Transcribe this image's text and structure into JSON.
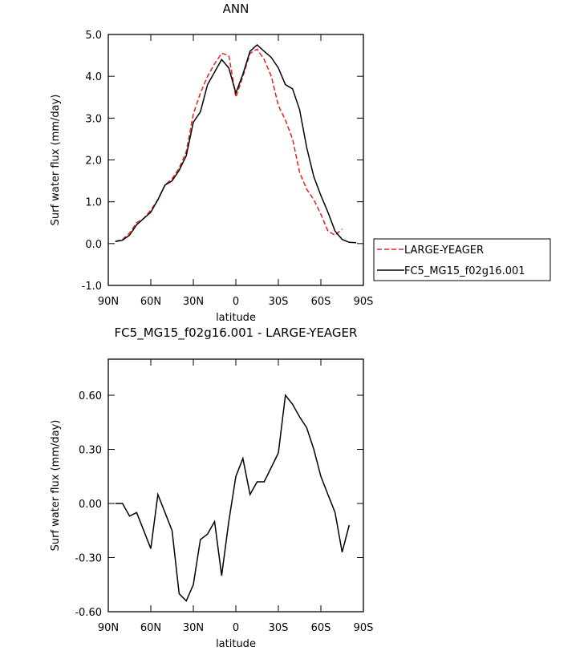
{
  "chart_data": [
    {
      "type": "line",
      "title": "ANN",
      "xlabel": "latitude",
      "ylabel": "Surf water flux (mm/day)",
      "x": [
        85,
        80,
        75,
        70,
        65,
        60,
        55,
        50,
        45,
        40,
        35,
        30,
        25,
        20,
        15,
        10,
        5,
        0,
        -5,
        -10,
        -15,
        -20,
        -25,
        -30,
        -35,
        -40,
        -45,
        -50,
        -55,
        -60,
        -65,
        -70,
        -75,
        -80,
        -85
      ],
      "xlim": [
        90,
        -90
      ],
      "xticks": [
        {
          "value": 90,
          "label": "90N"
        },
        {
          "value": 60,
          "label": "60N"
        },
        {
          "value": 30,
          "label": "30N"
        },
        0,
        {
          "value": -30,
          "label": "30S"
        },
        {
          "value": -60,
          "label": "60S"
        },
        {
          "value": -90,
          "label": "90S"
        }
      ],
      "ylim": [
        -1.0,
        5.0
      ],
      "yticks": [
        {
          "value": -1.0,
          "label": "-1.0"
        },
        {
          "value": 0.0,
          "label": "0.0"
        },
        {
          "value": 1.0,
          "label": "1.0"
        },
        {
          "value": 2.0,
          "label": "2.0"
        },
        {
          "value": 3.0,
          "label": "3.0"
        },
        {
          "value": 4.0,
          "label": "4.0"
        },
        {
          "value": 5.0,
          "label": "5.0"
        }
      ],
      "legend": "outside-right",
      "series": [
        {
          "name": "LARGE-YEAGER",
          "color": "#e8201a",
          "line_style": "dashed",
          "values": [
            0.05,
            0.1,
            0.25,
            0.5,
            0.6,
            0.8,
            1.05,
            1.4,
            1.55,
            1.8,
            2.2,
            3.1,
            3.6,
            4.0,
            4.3,
            4.55,
            4.5,
            3.5,
            4.0,
            4.55,
            4.65,
            4.4,
            4.0,
            3.3,
            2.95,
            2.5,
            1.7,
            1.3,
            1.05,
            0.7,
            0.3,
            0.2,
            0.35,
            null,
            null
          ]
        },
        {
          "name": "FC5_MG15_f02g16.001",
          "color": "#000000",
          "line_style": "solid",
          "values": [
            0.05,
            0.08,
            0.2,
            0.45,
            0.6,
            0.75,
            1.05,
            1.4,
            1.5,
            1.75,
            2.1,
            2.9,
            3.15,
            3.8,
            4.1,
            4.4,
            4.2,
            3.6,
            4.05,
            4.6,
            4.75,
            4.6,
            4.45,
            4.2,
            3.8,
            3.7,
            3.2,
            2.3,
            1.6,
            1.15,
            0.75,
            0.3,
            0.1,
            0.03,
            0.02
          ]
        }
      ]
    },
    {
      "type": "line",
      "title": "FC5_MG15_f02g16.001 - LARGE-YEAGER",
      "xlabel": "latitude",
      "ylabel": "Surf water flux (mm/day)",
      "x": [
        85,
        80,
        75,
        70,
        65,
        60,
        55,
        50,
        45,
        40,
        35,
        30,
        25,
        20,
        15,
        10,
        5,
        0,
        -5,
        -10,
        -15,
        -20,
        -25,
        -30,
        -35,
        -40,
        -45,
        -50,
        -55,
        -60,
        -65,
        -70,
        -75,
        -80,
        -85
      ],
      "xlim": [
        90,
        -90
      ],
      "xticks": [
        {
          "value": 90,
          "label": "90N"
        },
        {
          "value": 60,
          "label": "60N"
        },
        {
          "value": 30,
          "label": "30N"
        },
        0,
        {
          "value": -30,
          "label": "30S"
        },
        {
          "value": -60,
          "label": "60S"
        },
        {
          "value": -90,
          "label": "90S"
        }
      ],
      "ylim": [
        -0.6,
        0.8
      ],
      "yticks": [
        {
          "value": -0.6,
          "label": "-0.60"
        },
        {
          "value": -0.3,
          "label": "-0.30"
        },
        {
          "value": 0.0,
          "label": "0.00"
        },
        {
          "value": 0.3,
          "label": "0.30"
        },
        {
          "value": 0.6,
          "label": "0.60"
        }
      ],
      "series": [
        {
          "color": "#000000",
          "line_style": "solid",
          "values": [
            0.0,
            0.0,
            -0.07,
            -0.05,
            -0.15,
            -0.25,
            0.05,
            -0.05,
            -0.15,
            -0.5,
            -0.54,
            -0.45,
            -0.2,
            -0.17,
            -0.1,
            -0.4,
            -0.1,
            0.15,
            0.25,
            0.05,
            0.12,
            0.12,
            0.2,
            0.28,
            0.6,
            0.55,
            0.48,
            0.42,
            0.3,
            0.15,
            0.05,
            -0.05,
            -0.27,
            -0.12,
            null
          ]
        }
      ]
    }
  ]
}
